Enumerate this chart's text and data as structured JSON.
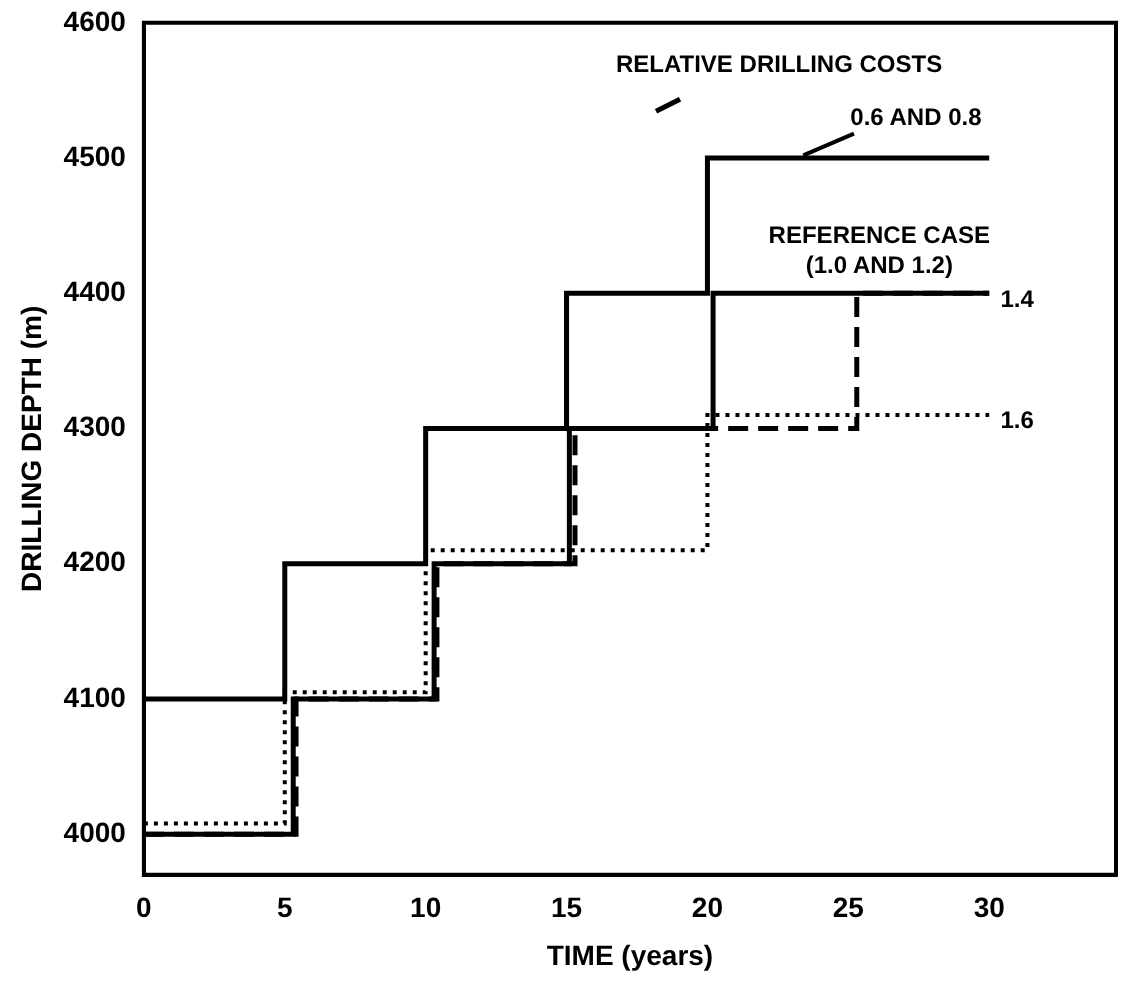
{
  "chart_data": {
    "type": "step",
    "xlabel": "TIME (years)",
    "ylabel": "DRILLING DEPTH (m)",
    "xlim": [
      0,
      34.5
    ],
    "xticks": [
      0,
      5,
      10,
      15,
      20,
      25,
      30
    ],
    "ylim": [
      3970,
      4600
    ],
    "yticks": [
      4000,
      4100,
      4200,
      4300,
      4400,
      4500,
      4600
    ],
    "grid": false,
    "legend": false,
    "marker": "none",
    "annotations": [
      {
        "text": "RELATIVE DRILLING COSTS",
        "x": 18.6,
        "y": 4539
      }
    ],
    "series": [
      {
        "name": "0.6 AND 0.8",
        "color": "#000000",
        "line_style": "solid",
        "x": [
          0,
          5,
          10,
          15,
          20,
          30
        ],
        "values": [
          4100,
          4200,
          4300,
          4400,
          4500,
          4500
        ]
      },
      {
        "name": "REFERENCE CASE (1.0 AND 1.2)",
        "color": "#000000",
        "line_style": "solid",
        "x": [
          0,
          5.3,
          10.3,
          15.1,
          20.2,
          30
        ],
        "values": [
          4000,
          4100,
          4200,
          4300,
          4400,
          4400
        ]
      },
      {
        "name": "1.4",
        "color": "#000000",
        "line_style": "dashed",
        "x": [
          0,
          5.4,
          10.4,
          15.3,
          25.3,
          30
        ],
        "values": [
          4000,
          4100,
          4200,
          4300,
          4400,
          4400
        ]
      },
      {
        "name": "1.6",
        "color": "#000000",
        "line_style": "dotted",
        "x": [
          0,
          5,
          10,
          20,
          30
        ],
        "values": [
          4008,
          4105,
          4210,
          4310,
          4310
        ]
      }
    ]
  }
}
